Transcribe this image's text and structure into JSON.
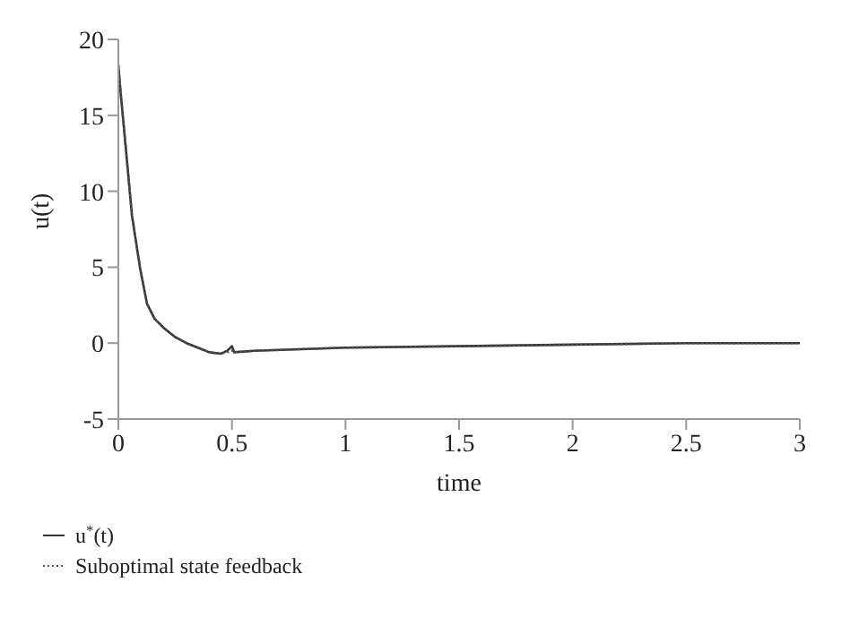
{
  "chart_data": {
    "type": "line",
    "xlabel": "time",
    "ylabel": "u(t)",
    "x": [
      0,
      0.01,
      0.03,
      0.06,
      0.095,
      0.126,
      0.16,
      0.2,
      0.25,
      0.3,
      0.35,
      0.4,
      0.45,
      0.48,
      0.5,
      0.51,
      0.6,
      0.8,
      1,
      1.5,
      2,
      2.5,
      3
    ],
    "series": [
      {
        "name": "u$^{*}$(t)",
        "color": "#333333",
        "line_style": "solid",
        "values": [
          18.3,
          16.5,
          13.3,
          8.4,
          5,
          2.6,
          1.6,
          1,
          0.4,
          0,
          -0.3,
          -0.6,
          -0.7,
          -0.5,
          -0.2,
          -0.6,
          -0.5,
          -0.4,
          -0.3,
          -0.2,
          -0.1,
          0,
          0
        ]
      },
      {
        "name": "Suboptimal state feedback",
        "color": "#555555",
        "line_style": "dotted",
        "values": [
          18.3,
          16.5,
          13.3,
          8.4,
          5,
          2.6,
          1.6,
          1,
          0.4,
          0,
          -0.3,
          -0.6,
          -0.7,
          -0.6,
          -0.5,
          -0.6,
          -0.5,
          -0.4,
          -0.3,
          -0.2,
          -0.1,
          0,
          0
        ]
      }
    ],
    "xlim": [
      0,
      3
    ],
    "xticks": [
      0,
      0.5,
      1,
      1.5,
      2,
      2.5,
      3
    ],
    "ylim": [
      -5,
      20
    ],
    "yticks": [
      -5,
      0,
      5,
      10,
      15,
      20
    ],
    "legend": "bottom left"
  }
}
